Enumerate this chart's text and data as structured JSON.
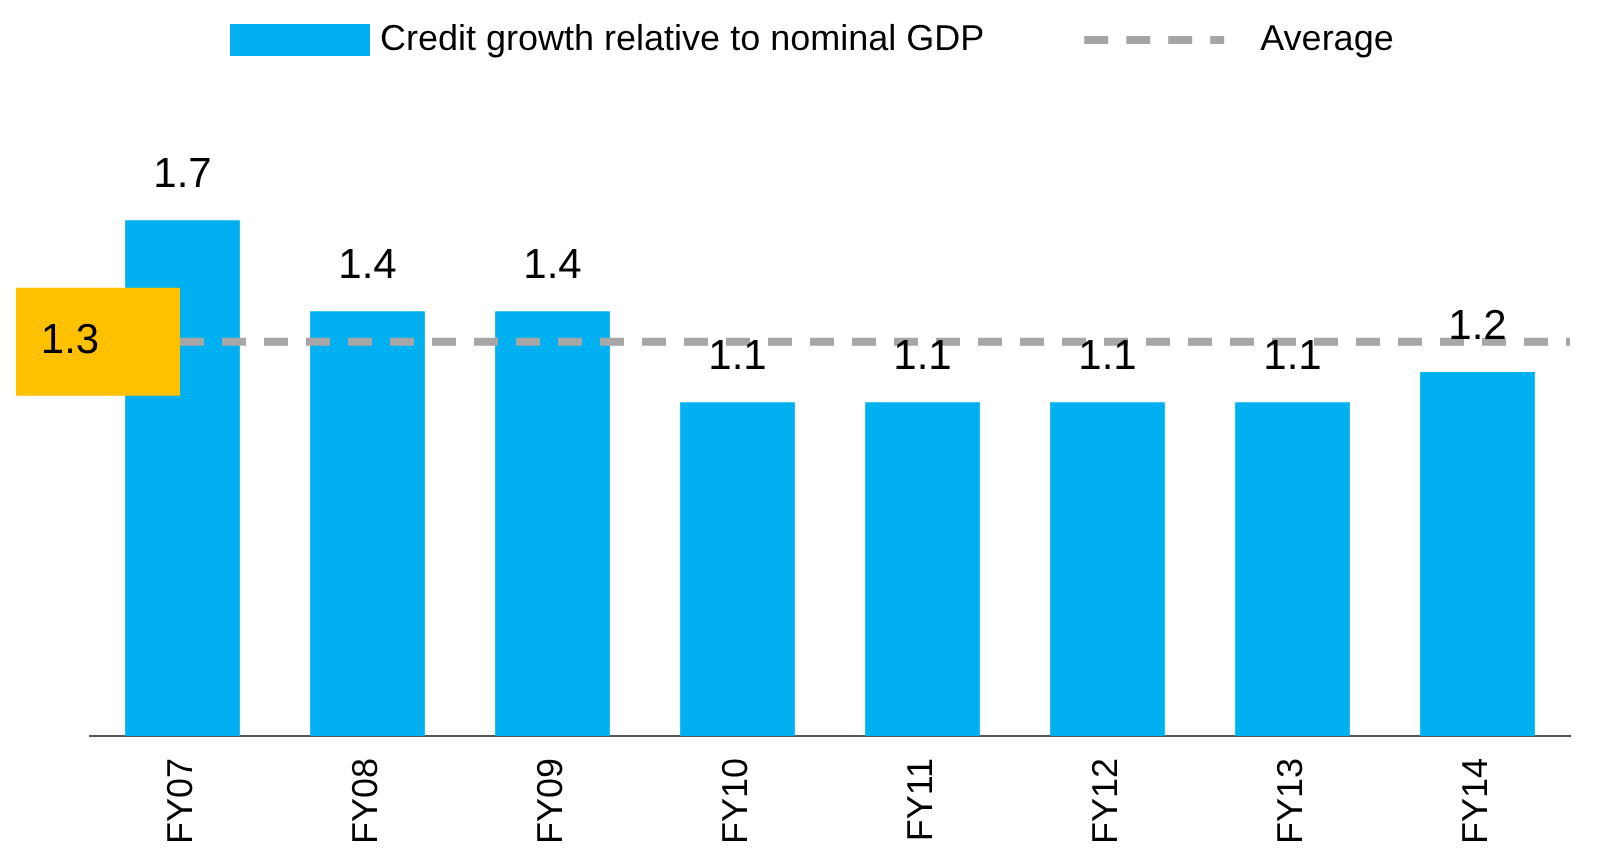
{
  "chart_data": {
    "type": "bar",
    "categories": [
      "FY07",
      "FY08",
      "FY09",
      "FY10",
      "FY11",
      "FY12",
      "FY13",
      "FY14"
    ],
    "series": [
      {
        "name": "Credit growth relative to nominal GDP",
        "color": "#00b0f0",
        "values": [
          1.7,
          1.4,
          1.4,
          1.1,
          1.1,
          1.1,
          1.1,
          1.2
        ]
      }
    ],
    "data_labels": true,
    "tick_labels": "x",
    "grid": false,
    "legend": "top",
    "ref_lines": [
      {
        "axis": "y",
        "value": 1.3,
        "label": "Average",
        "color": "#a6a6a6",
        "line_style": "dashed"
      }
    ],
    "annotations": [
      "1.3"
    ]
  }
}
